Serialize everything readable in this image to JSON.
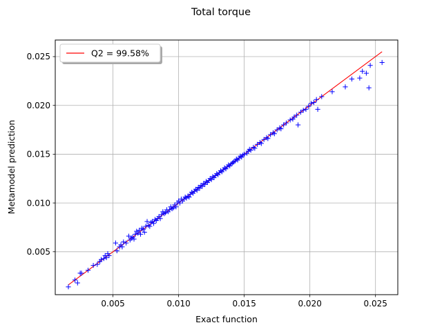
{
  "chart_data": {
    "type": "scatter",
    "title": "Total torque",
    "xlabel": "Exact function",
    "ylabel": "Metamodel prediction",
    "xlim": [
      0.0006,
      0.0267
    ],
    "ylim": [
      0.0006,
      0.0267
    ],
    "xticks": [
      "0.005",
      "0.010",
      "0.015",
      "0.020",
      "0.025"
    ],
    "yticks": [
      "0.005",
      "0.010",
      "0.015",
      "0.020",
      "0.025"
    ],
    "xtick_values": [
      0.005,
      0.01,
      0.015,
      0.02,
      0.025
    ],
    "ytick_values": [
      0.005,
      0.01,
      0.015,
      0.02,
      0.025
    ],
    "grid": true,
    "legend": {
      "position": "top-left",
      "entries": [
        "Q2 = 99.58%"
      ]
    },
    "reference_line": {
      "label": "Q2 = 99.58%",
      "x": [
        0.0016,
        0.0255
      ],
      "y": [
        0.0016,
        0.0255
      ],
      "color": "#ff0000"
    },
    "marker_color": "#0000ff",
    "points": [
      [
        0.0016,
        0.0014
      ],
      [
        0.0021,
        0.0021
      ],
      [
        0.0023,
        0.0018
      ],
      [
        0.0025,
        0.0028
      ],
      [
        0.0026,
        0.0028
      ],
      [
        0.0031,
        0.0031
      ],
      [
        0.0035,
        0.0036
      ],
      [
        0.0038,
        0.0037
      ],
      [
        0.004,
        0.004
      ],
      [
        0.0041,
        0.0042
      ],
      [
        0.0043,
        0.0043
      ],
      [
        0.0044,
        0.0046
      ],
      [
        0.0045,
        0.0044
      ],
      [
        0.0046,
        0.0048
      ],
      [
        0.0047,
        0.0046
      ],
      [
        0.0052,
        0.0059
      ],
      [
        0.0053,
        0.0051
      ],
      [
        0.0055,
        0.0055
      ],
      [
        0.0056,
        0.0057
      ],
      [
        0.0057,
        0.0055
      ],
      [
        0.0058,
        0.006
      ],
      [
        0.006,
        0.0059
      ],
      [
        0.0062,
        0.0066
      ],
      [
        0.0063,
        0.0062
      ],
      [
        0.0064,
        0.0064
      ],
      [
        0.0065,
        0.0065
      ],
      [
        0.0066,
        0.0063
      ],
      [
        0.0067,
        0.0068
      ],
      [
        0.0068,
        0.0071
      ],
      [
        0.0069,
        0.0069
      ],
      [
        0.007,
        0.0072
      ],
      [
        0.0071,
        0.0068
      ],
      [
        0.0072,
        0.0074
      ],
      [
        0.0073,
        0.0073
      ],
      [
        0.0074,
        0.007
      ],
      [
        0.0075,
        0.0076
      ],
      [
        0.0076,
        0.0081
      ],
      [
        0.0077,
        0.0077
      ],
      [
        0.0078,
        0.0076
      ],
      [
        0.0079,
        0.008
      ],
      [
        0.008,
        0.0081
      ],
      [
        0.0081,
        0.0079
      ],
      [
        0.0082,
        0.0083
      ],
      [
        0.0083,
        0.0082
      ],
      [
        0.0084,
        0.0084
      ],
      [
        0.0085,
        0.0086
      ],
      [
        0.0086,
        0.0084
      ],
      [
        0.0087,
        0.0088
      ],
      [
        0.0088,
        0.0091
      ],
      [
        0.0089,
        0.0089
      ],
      [
        0.009,
        0.009
      ],
      [
        0.0091,
        0.0093
      ],
      [
        0.0092,
        0.0091
      ],
      [
        0.0093,
        0.0093
      ],
      [
        0.0094,
        0.0096
      ],
      [
        0.0095,
        0.0094
      ],
      [
        0.0096,
        0.0095
      ],
      [
        0.0097,
        0.0098
      ],
      [
        0.0098,
        0.0096
      ],
      [
        0.0099,
        0.01
      ],
      [
        0.01,
        0.0102
      ],
      [
        0.0101,
        0.01
      ],
      [
        0.0102,
        0.0104
      ],
      [
        0.0103,
        0.0102
      ],
      [
        0.0104,
        0.0104
      ],
      [
        0.0105,
        0.0106
      ],
      [
        0.0106,
        0.0105
      ],
      [
        0.0107,
        0.0107
      ],
      [
        0.0108,
        0.0106
      ],
      [
        0.0109,
        0.0109
      ],
      [
        0.011,
        0.0111
      ],
      [
        0.0111,
        0.011
      ],
      [
        0.0112,
        0.0112
      ],
      [
        0.0113,
        0.0114
      ],
      [
        0.0114,
        0.0113
      ],
      [
        0.0115,
        0.0116
      ],
      [
        0.0116,
        0.0115
      ],
      [
        0.0117,
        0.0118
      ],
      [
        0.0118,
        0.0117
      ],
      [
        0.0119,
        0.012
      ],
      [
        0.012,
        0.0119
      ],
      [
        0.0121,
        0.0122
      ],
      [
        0.0122,
        0.0121
      ],
      [
        0.0123,
        0.0123
      ],
      [
        0.0124,
        0.0125
      ],
      [
        0.0125,
        0.0124
      ],
      [
        0.0126,
        0.0127
      ],
      [
        0.0127,
        0.0126
      ],
      [
        0.0128,
        0.0128
      ],
      [
        0.0129,
        0.013
      ],
      [
        0.013,
        0.0129
      ],
      [
        0.0131,
        0.0131
      ],
      [
        0.0132,
        0.0133
      ],
      [
        0.0133,
        0.0132
      ],
      [
        0.0134,
        0.0134
      ],
      [
        0.0135,
        0.0136
      ],
      [
        0.0136,
        0.0135
      ],
      [
        0.0137,
        0.0137
      ],
      [
        0.0138,
        0.0139
      ],
      [
        0.0139,
        0.0138
      ],
      [
        0.014,
        0.014
      ],
      [
        0.0141,
        0.0141
      ],
      [
        0.0142,
        0.0142
      ],
      [
        0.0143,
        0.0143
      ],
      [
        0.0144,
        0.0145
      ],
      [
        0.0145,
        0.0144
      ],
      [
        0.0146,
        0.0146
      ],
      [
        0.0147,
        0.0148
      ],
      [
        0.0148,
        0.0147
      ],
      [
        0.0149,
        0.0149
      ],
      [
        0.015,
        0.015
      ],
      [
        0.0152,
        0.0151
      ],
      [
        0.0153,
        0.0153
      ],
      [
        0.0154,
        0.0155
      ],
      [
        0.0155,
        0.0154
      ],
      [
        0.0157,
        0.0157
      ],
      [
        0.0158,
        0.0156
      ],
      [
        0.016,
        0.016
      ],
      [
        0.0162,
        0.0162
      ],
      [
        0.0163,
        0.0161
      ],
      [
        0.0165,
        0.0165
      ],
      [
        0.0167,
        0.0167
      ],
      [
        0.0168,
        0.0166
      ],
      [
        0.017,
        0.017
      ],
      [
        0.0172,
        0.0172
      ],
      [
        0.0173,
        0.0171
      ],
      [
        0.0175,
        0.0175
      ],
      [
        0.0177,
        0.0177
      ],
      [
        0.0178,
        0.0176
      ],
      [
        0.018,
        0.018
      ],
      [
        0.0182,
        0.0182
      ],
      [
        0.0185,
        0.0185
      ],
      [
        0.0187,
        0.0186
      ],
      [
        0.0188,
        0.0188
      ],
      [
        0.019,
        0.019
      ],
      [
        0.0191,
        0.018
      ],
      [
        0.0193,
        0.0193
      ],
      [
        0.0195,
        0.0195
      ],
      [
        0.0197,
        0.0196
      ],
      [
        0.0199,
        0.0199
      ],
      [
        0.0201,
        0.0202
      ],
      [
        0.0203,
        0.0203
      ],
      [
        0.0205,
        0.0206
      ],
      [
        0.0206,
        0.0196
      ],
      [
        0.0209,
        0.0209
      ],
      [
        0.0217,
        0.0214
      ],
      [
        0.0227,
        0.0219
      ],
      [
        0.0232,
        0.0227
      ],
      [
        0.0238,
        0.0228
      ],
      [
        0.024,
        0.0235
      ],
      [
        0.0243,
        0.0233
      ],
      [
        0.0245,
        0.0218
      ],
      [
        0.0246,
        0.0241
      ],
      [
        0.0255,
        0.0244
      ]
    ]
  }
}
